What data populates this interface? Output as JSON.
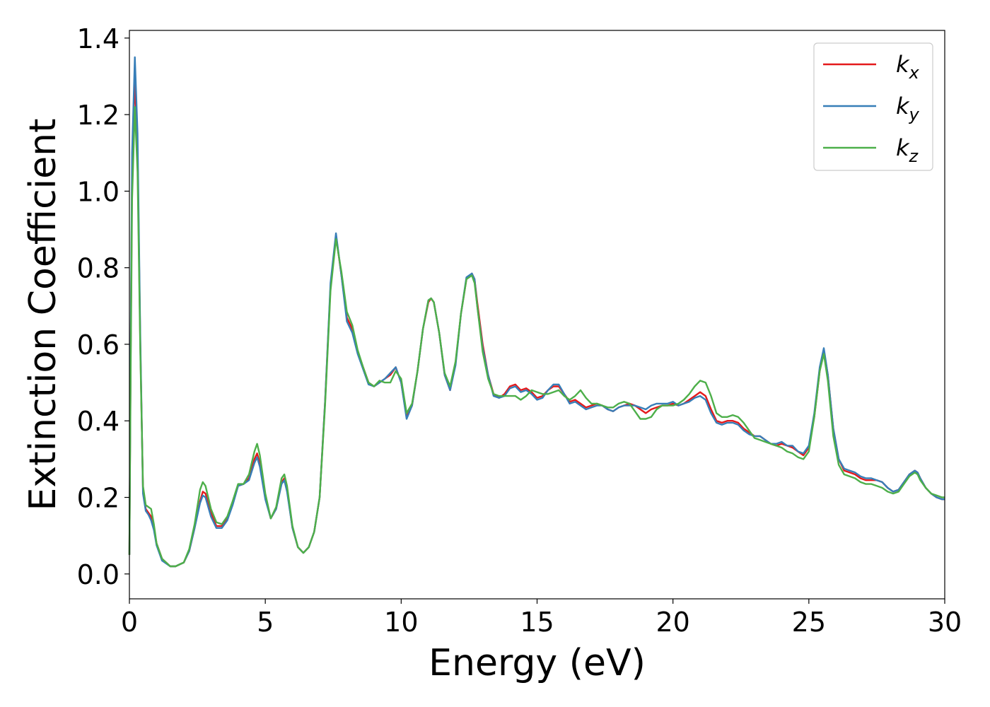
{
  "chart_data": {
    "type": "line",
    "xlabel": "Energy (eV)",
    "ylabel": "Extinction Coefficient",
    "xlim": [
      0,
      30
    ],
    "ylim": [
      -0.065,
      1.42
    ],
    "xticks": [
      0,
      5,
      10,
      15,
      20,
      25,
      30
    ],
    "xtick_labels": [
      "0",
      "5",
      "10",
      "15",
      "20",
      "25",
      "30"
    ],
    "yticks": [
      0.0,
      0.2,
      0.4,
      0.6,
      0.8,
      1.0,
      1.2,
      1.4
    ],
    "ytick_labels": [
      "0.0",
      "0.2",
      "0.4",
      "0.6",
      "0.8",
      "1.0",
      "1.2",
      "1.4"
    ],
    "grid": false,
    "legend": "top-right",
    "series": [
      {
        "name": "k",
        "subscript": "x",
        "color": "#e41a1c",
        "x": [
          0,
          0.05,
          0.1,
          0.2,
          0.3,
          0.4,
          0.5,
          0.6,
          0.7,
          0.8,
          0.9,
          1.0,
          1.2,
          1.5,
          1.7,
          2.0,
          2.2,
          2.4,
          2.6,
          2.7,
          2.8,
          3.0,
          3.2,
          3.4,
          3.6,
          3.8,
          4.0,
          4.2,
          4.4,
          4.6,
          4.7,
          4.8,
          5.0,
          5.2,
          5.4,
          5.6,
          5.7,
          5.8,
          6.0,
          6.2,
          6.4,
          6.6,
          6.8,
          7.0,
          7.2,
          7.4,
          7.6,
          7.8,
          8.0,
          8.2,
          8.4,
          8.6,
          8.8,
          9.0,
          9.2,
          9.4,
          9.6,
          9.8,
          10.0,
          10.2,
          10.4,
          10.6,
          10.8,
          11.0,
          11.1,
          11.2,
          11.4,
          11.6,
          11.8,
          12.0,
          12.2,
          12.4,
          12.6,
          12.7,
          12.8,
          13.0,
          13.2,
          13.4,
          13.6,
          13.8,
          14.0,
          14.2,
          14.4,
          14.6,
          14.8,
          15.0,
          15.2,
          15.4,
          15.6,
          15.8,
          16.0,
          16.2,
          16.4,
          16.6,
          16.8,
          17.0,
          17.2,
          17.4,
          17.6,
          17.8,
          18.0,
          18.2,
          18.4,
          18.6,
          18.8,
          19.0,
          19.2,
          19.4,
          19.6,
          19.8,
          20.0,
          20.2,
          20.4,
          20.6,
          20.8,
          21.0,
          21.2,
          21.4,
          21.6,
          21.8,
          22.0,
          22.2,
          22.4,
          22.6,
          22.8,
          23.0,
          23.2,
          23.4,
          23.6,
          23.8,
          24.0,
          24.2,
          24.4,
          24.6,
          24.8,
          25.0,
          25.2,
          25.4,
          25.55,
          25.7,
          25.9,
          26.1,
          26.3,
          26.5,
          26.7,
          26.9,
          27.1,
          27.3,
          27.5,
          27.7,
          27.9,
          28.1,
          28.3,
          28.5,
          28.7,
          28.9,
          29.0,
          29.1,
          29.3,
          29.5,
          29.7,
          29.9,
          30.0
        ],
        "y": [
          0.05,
          0.6,
          1.05,
          1.3,
          1.1,
          0.6,
          0.22,
          0.17,
          0.16,
          0.15,
          0.12,
          0.08,
          0.04,
          0.02,
          0.02,
          0.03,
          0.06,
          0.12,
          0.19,
          0.215,
          0.21,
          0.16,
          0.125,
          0.125,
          0.145,
          0.185,
          0.23,
          0.235,
          0.25,
          0.3,
          0.315,
          0.29,
          0.2,
          0.145,
          0.17,
          0.24,
          0.25,
          0.22,
          0.12,
          0.07,
          0.055,
          0.07,
          0.11,
          0.2,
          0.45,
          0.75,
          0.885,
          0.78,
          0.67,
          0.64,
          0.58,
          0.54,
          0.5,
          0.49,
          0.5,
          0.51,
          0.52,
          0.54,
          0.5,
          0.41,
          0.44,
          0.53,
          0.64,
          0.71,
          0.72,
          0.71,
          0.63,
          0.52,
          0.48,
          0.55,
          0.68,
          0.77,
          0.785,
          0.77,
          0.71,
          0.6,
          0.52,
          0.47,
          0.46,
          0.47,
          0.49,
          0.495,
          0.48,
          0.485,
          0.475,
          0.46,
          0.465,
          0.48,
          0.49,
          0.49,
          0.47,
          0.45,
          0.455,
          0.445,
          0.435,
          0.44,
          0.445,
          0.44,
          0.43,
          0.425,
          0.435,
          0.44,
          0.445,
          0.44,
          0.43,
          0.42,
          0.43,
          0.435,
          0.44,
          0.44,
          0.445,
          0.44,
          0.445,
          0.455,
          0.465,
          0.475,
          0.465,
          0.43,
          0.4,
          0.395,
          0.4,
          0.4,
          0.395,
          0.38,
          0.37,
          0.36,
          0.36,
          0.35,
          0.34,
          0.335,
          0.34,
          0.335,
          0.33,
          0.32,
          0.31,
          0.33,
          0.41,
          0.53,
          0.585,
          0.52,
          0.38,
          0.3,
          0.27,
          0.265,
          0.26,
          0.25,
          0.245,
          0.245,
          0.245,
          0.24,
          0.225,
          0.215,
          0.22,
          0.24,
          0.26,
          0.27,
          0.265,
          0.25,
          0.225,
          0.21,
          0.2,
          0.195,
          0.195
        ]
      },
      {
        "name": "k",
        "subscript": "y",
        "color": "#377eb8",
        "x": [
          0,
          0.05,
          0.1,
          0.2,
          0.3,
          0.4,
          0.5,
          0.6,
          0.7,
          0.8,
          0.9,
          1.0,
          1.2,
          1.5,
          1.7,
          2.0,
          2.2,
          2.4,
          2.6,
          2.7,
          2.8,
          3.0,
          3.2,
          3.4,
          3.6,
          3.8,
          4.0,
          4.2,
          4.4,
          4.6,
          4.7,
          4.8,
          5.0,
          5.2,
          5.4,
          5.6,
          5.7,
          5.8,
          6.0,
          6.2,
          6.4,
          6.6,
          6.8,
          7.0,
          7.2,
          7.4,
          7.6,
          7.8,
          8.0,
          8.2,
          8.4,
          8.6,
          8.8,
          9.0,
          9.2,
          9.4,
          9.6,
          9.8,
          10.0,
          10.2,
          10.4,
          10.6,
          10.8,
          11.0,
          11.1,
          11.2,
          11.4,
          11.6,
          11.8,
          12.0,
          12.2,
          12.4,
          12.6,
          12.7,
          12.8,
          13.0,
          13.2,
          13.4,
          13.6,
          13.8,
          14.0,
          14.2,
          14.4,
          14.6,
          14.8,
          15.0,
          15.2,
          15.4,
          15.6,
          15.8,
          16.0,
          16.2,
          16.4,
          16.6,
          16.8,
          17.0,
          17.2,
          17.4,
          17.6,
          17.8,
          18.0,
          18.2,
          18.4,
          18.6,
          18.8,
          19.0,
          19.2,
          19.4,
          19.6,
          19.8,
          20.0,
          20.2,
          20.4,
          20.6,
          20.8,
          21.0,
          21.2,
          21.4,
          21.6,
          21.8,
          22.0,
          22.2,
          22.4,
          22.6,
          22.8,
          23.0,
          23.2,
          23.4,
          23.6,
          23.8,
          24.0,
          24.2,
          24.4,
          24.6,
          24.8,
          25.0,
          25.2,
          25.4,
          25.55,
          25.7,
          25.9,
          26.1,
          26.3,
          26.5,
          26.7,
          26.9,
          27.1,
          27.3,
          27.5,
          27.7,
          27.9,
          28.1,
          28.3,
          28.5,
          28.7,
          28.9,
          29.0,
          29.1,
          29.3,
          29.5,
          29.7,
          29.9,
          30.0
        ],
        "y": [
          0.05,
          0.62,
          1.1,
          1.35,
          1.15,
          0.62,
          0.21,
          0.165,
          0.155,
          0.14,
          0.115,
          0.075,
          0.035,
          0.02,
          0.02,
          0.03,
          0.06,
          0.12,
          0.185,
          0.205,
          0.2,
          0.15,
          0.12,
          0.12,
          0.14,
          0.18,
          0.23,
          0.235,
          0.245,
          0.29,
          0.305,
          0.28,
          0.195,
          0.145,
          0.17,
          0.235,
          0.245,
          0.215,
          0.12,
          0.07,
          0.055,
          0.07,
          0.11,
          0.2,
          0.45,
          0.76,
          0.89,
          0.78,
          0.66,
          0.63,
          0.575,
          0.535,
          0.495,
          0.49,
          0.5,
          0.51,
          0.525,
          0.54,
          0.5,
          0.405,
          0.44,
          0.53,
          0.64,
          0.715,
          0.72,
          0.71,
          0.63,
          0.52,
          0.48,
          0.545,
          0.68,
          0.775,
          0.785,
          0.77,
          0.7,
          0.59,
          0.52,
          0.465,
          0.46,
          0.465,
          0.485,
          0.49,
          0.475,
          0.48,
          0.47,
          0.455,
          0.46,
          0.48,
          0.495,
          0.495,
          0.47,
          0.445,
          0.45,
          0.44,
          0.43,
          0.435,
          0.44,
          0.44,
          0.43,
          0.425,
          0.435,
          0.44,
          0.44,
          0.44,
          0.435,
          0.43,
          0.44,
          0.445,
          0.445,
          0.445,
          0.45,
          0.44,
          0.445,
          0.45,
          0.46,
          0.465,
          0.455,
          0.42,
          0.395,
          0.39,
          0.395,
          0.395,
          0.39,
          0.375,
          0.365,
          0.36,
          0.36,
          0.35,
          0.34,
          0.34,
          0.345,
          0.335,
          0.335,
          0.32,
          0.315,
          0.335,
          0.42,
          0.54,
          0.59,
          0.52,
          0.38,
          0.3,
          0.275,
          0.27,
          0.265,
          0.255,
          0.25,
          0.25,
          0.245,
          0.24,
          0.225,
          0.215,
          0.22,
          0.24,
          0.26,
          0.27,
          0.265,
          0.25,
          0.225,
          0.21,
          0.2,
          0.195,
          0.195
        ]
      },
      {
        "name": "k",
        "subscript": "z",
        "color": "#4daf4a",
        "x": [
          0,
          0.05,
          0.1,
          0.2,
          0.3,
          0.4,
          0.5,
          0.6,
          0.7,
          0.8,
          0.9,
          1.0,
          1.2,
          1.5,
          1.7,
          2.0,
          2.2,
          2.4,
          2.6,
          2.7,
          2.8,
          3.0,
          3.2,
          3.4,
          3.6,
          3.8,
          4.0,
          4.2,
          4.4,
          4.6,
          4.7,
          4.8,
          5.0,
          5.2,
          5.4,
          5.6,
          5.7,
          5.8,
          6.0,
          6.2,
          6.4,
          6.6,
          6.8,
          7.0,
          7.2,
          7.4,
          7.6,
          7.8,
          8.0,
          8.2,
          8.4,
          8.6,
          8.8,
          9.0,
          9.2,
          9.4,
          9.6,
          9.8,
          10.0,
          10.2,
          10.4,
          10.6,
          10.8,
          11.0,
          11.1,
          11.2,
          11.4,
          11.6,
          11.8,
          12.0,
          12.2,
          12.4,
          12.6,
          12.7,
          12.8,
          13.0,
          13.2,
          13.4,
          13.6,
          13.8,
          14.0,
          14.2,
          14.4,
          14.6,
          14.8,
          15.0,
          15.2,
          15.4,
          15.6,
          15.8,
          16.0,
          16.2,
          16.4,
          16.6,
          16.8,
          17.0,
          17.2,
          17.4,
          17.6,
          17.8,
          18.0,
          18.2,
          18.4,
          18.6,
          18.8,
          19.0,
          19.2,
          19.4,
          19.6,
          19.8,
          20.0,
          20.2,
          20.4,
          20.6,
          20.8,
          21.0,
          21.2,
          21.4,
          21.6,
          21.8,
          22.0,
          22.2,
          22.4,
          22.6,
          22.8,
          23.0,
          23.2,
          23.4,
          23.6,
          23.8,
          24.0,
          24.2,
          24.4,
          24.6,
          24.8,
          25.0,
          25.2,
          25.4,
          25.55,
          25.7,
          25.9,
          26.1,
          26.3,
          26.5,
          26.7,
          26.9,
          27.1,
          27.3,
          27.5,
          27.7,
          27.9,
          28.1,
          28.3,
          28.5,
          28.7,
          28.9,
          29.0,
          29.1,
          29.3,
          29.5,
          29.7,
          29.9,
          30.0
        ],
        "y": [
          0.05,
          0.55,
          0.98,
          1.22,
          1.05,
          0.58,
          0.23,
          0.18,
          0.175,
          0.17,
          0.13,
          0.08,
          0.04,
          0.02,
          0.02,
          0.03,
          0.065,
          0.13,
          0.22,
          0.24,
          0.23,
          0.17,
          0.135,
          0.13,
          0.15,
          0.19,
          0.235,
          0.235,
          0.26,
          0.32,
          0.34,
          0.31,
          0.21,
          0.145,
          0.175,
          0.25,
          0.26,
          0.23,
          0.125,
          0.07,
          0.055,
          0.07,
          0.11,
          0.2,
          0.44,
          0.74,
          0.875,
          0.79,
          0.685,
          0.65,
          0.585,
          0.54,
          0.5,
          0.49,
          0.505,
          0.5,
          0.5,
          0.53,
          0.51,
          0.42,
          0.445,
          0.53,
          0.64,
          0.715,
          0.72,
          0.71,
          0.63,
          0.525,
          0.49,
          0.555,
          0.68,
          0.77,
          0.78,
          0.76,
          0.7,
          0.58,
          0.51,
          0.47,
          0.465,
          0.465,
          0.465,
          0.465,
          0.455,
          0.465,
          0.48,
          0.475,
          0.47,
          0.47,
          0.475,
          0.48,
          0.465,
          0.455,
          0.465,
          0.48,
          0.46,
          0.445,
          0.445,
          0.44,
          0.435,
          0.435,
          0.445,
          0.45,
          0.445,
          0.425,
          0.405,
          0.405,
          0.41,
          0.43,
          0.44,
          0.44,
          0.44,
          0.445,
          0.455,
          0.47,
          0.49,
          0.505,
          0.5,
          0.465,
          0.42,
          0.41,
          0.41,
          0.415,
          0.41,
          0.395,
          0.375,
          0.355,
          0.35,
          0.345,
          0.34,
          0.335,
          0.33,
          0.32,
          0.315,
          0.305,
          0.3,
          0.32,
          0.41,
          0.53,
          0.575,
          0.505,
          0.36,
          0.285,
          0.26,
          0.255,
          0.25,
          0.24,
          0.235,
          0.235,
          0.23,
          0.225,
          0.215,
          0.21,
          0.215,
          0.235,
          0.255,
          0.265,
          0.26,
          0.245,
          0.225,
          0.21,
          0.205,
          0.2,
          0.2
        ]
      }
    ]
  }
}
